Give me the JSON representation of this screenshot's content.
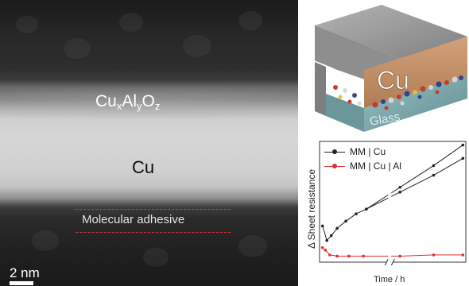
{
  "micrograph": {
    "oxide_label": {
      "base": "Cu",
      "sub1": "x",
      "mid": "Al",
      "sub2": "y",
      "mid2": "O",
      "sub3": "z"
    },
    "metal_label": "Cu",
    "adhesive_label": "Molecular adhesive",
    "scale_bar_label": "2 nm"
  },
  "schematic": {
    "top_layer_label": "Cu",
    "bottom_layer_label": "Glass",
    "colors": {
      "top_face": "#9a9a9a",
      "front_face": "#c49468",
      "substrate": "#7fa9ad"
    }
  },
  "chart_data": {
    "type": "line",
    "xlabel": "Time / h",
    "ylabel": "Δ Sheet resistance",
    "axis_break": true,
    "legend_position": "top-left",
    "series": [
      {
        "name": "MM | Cu",
        "color": "#222222",
        "points": [
          [
            0.02,
            0.3
          ],
          [
            0.05,
            0.18
          ],
          [
            0.08,
            0.22
          ],
          [
            0.12,
            0.28
          ],
          [
            0.18,
            0.34
          ],
          [
            0.25,
            0.4
          ],
          [
            0.32,
            0.44
          ],
          [
            0.55,
            0.62
          ],
          [
            0.78,
            0.8
          ],
          [
            0.98,
            0.97
          ]
        ]
      },
      {
        "name": "MM | Cu | Al",
        "color": "#e03030",
        "points": [
          [
            0.02,
            0.12
          ],
          [
            0.04,
            0.1
          ],
          [
            0.07,
            0.06
          ],
          [
            0.12,
            0.05
          ],
          [
            0.2,
            0.05
          ],
          [
            0.3,
            0.05
          ],
          [
            0.55,
            0.05
          ],
          [
            0.78,
            0.06
          ],
          [
            0.98,
            0.06
          ]
        ]
      }
    ],
    "extra_trace": {
      "name": "",
      "color": "#222222",
      "points": [
        [
          0.32,
          0.44
        ],
        [
          0.55,
          0.58
        ],
        [
          0.78,
          0.72
        ],
        [
          0.98,
          0.86
        ]
      ]
    }
  }
}
